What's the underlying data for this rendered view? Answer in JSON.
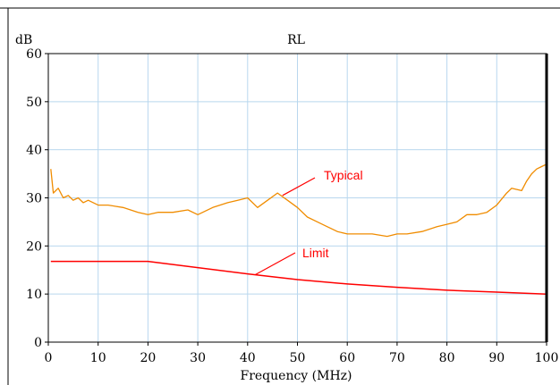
{
  "chart_data": {
    "type": "line",
    "title": "RL",
    "xlabel": "Frequency (MHz)",
    "ylabel": "dB",
    "xlim": [
      0,
      100
    ],
    "ylim": [
      0,
      60
    ],
    "xticks": [
      0,
      10,
      20,
      30,
      40,
      50,
      60,
      70,
      80,
      90,
      100
    ],
    "yticks": [
      0,
      10,
      20,
      30,
      40,
      50,
      60
    ],
    "grid": true,
    "series": [
      {
        "name": "Typical",
        "color": "#f08c00",
        "x": [
          0.5,
          1,
          2,
          3,
          4,
          5,
          6,
          7,
          8,
          10,
          12,
          15,
          18,
          20,
          22,
          25,
          28,
          30,
          33,
          36,
          38,
          40,
          42,
          44,
          46,
          48,
          50,
          52,
          54,
          56,
          58,
          60,
          62,
          65,
          68,
          70,
          72,
          75,
          78,
          80,
          82,
          84,
          86,
          88,
          90,
          92,
          93,
          95,
          96,
          97,
          98,
          99,
          100
        ],
        "y": [
          36,
          31,
          32,
          30,
          30.5,
          29.5,
          30,
          29,
          29.5,
          28.5,
          28.5,
          28,
          27,
          26.5,
          27,
          27,
          27.5,
          26.5,
          28,
          29,
          29.5,
          30,
          28,
          29.5,
          31,
          29.5,
          28,
          26,
          25,
          24,
          23,
          22.5,
          22.5,
          22.5,
          22,
          22.5,
          22.5,
          23,
          24,
          24.5,
          25,
          26.5,
          26.5,
          27,
          28.5,
          31,
          32,
          31.5,
          33.5,
          35,
          36,
          36.5,
          37
        ]
      },
      {
        "name": "Limit",
        "color": "#ff0000",
        "x": [
          0.5,
          20,
          40,
          50,
          60,
          70,
          80,
          90,
          100
        ],
        "y": [
          16.8,
          16.8,
          14.2,
          13.0,
          12.1,
          11.4,
          10.8,
          10.4,
          10.0
        ]
      }
    ],
    "annotations": [
      {
        "text": "Typical",
        "color": "#ff0000"
      },
      {
        "text": "Limit",
        "color": "#ff0000"
      }
    ]
  }
}
